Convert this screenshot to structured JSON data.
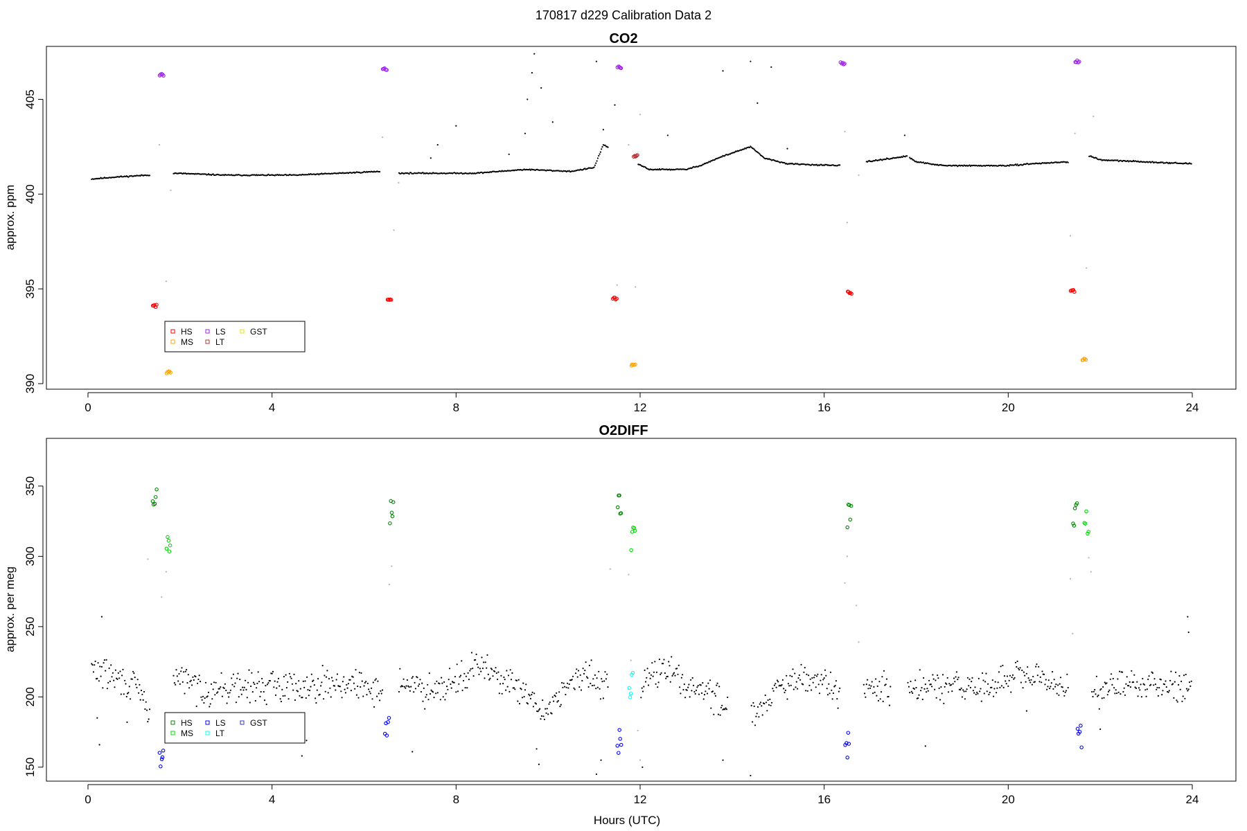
{
  "figure_title": "170817   d229   Calibration Data 2",
  "x_axis_label": "Hours (UTC)",
  "colors": {
    "ambient": "#000000",
    "transition": "#bbbbbb",
    "HS_co2": "#ff0000",
    "MS_co2": "#ffa500",
    "LS_co2": "#a020f0",
    "LT_co2": "#b03030",
    "GST_co2": "#ffff00",
    "HS_o2": "#008800",
    "MS_o2": "#00dd00",
    "LS_o2": "#0000ff",
    "LT_o2": "#00ffff",
    "GST_o2": "#3030cc"
  },
  "chart_data": [
    {
      "type": "scatter",
      "title": "CO2",
      "xlabel": "",
      "ylabel": "approx. ppm",
      "xlim": [
        0,
        24
      ],
      "ylim": [
        390,
        407.5
      ],
      "xticks": [
        0,
        4,
        8,
        12,
        16,
        20,
        24
      ],
      "yticks": [
        390,
        395,
        400,
        405
      ],
      "legend": {
        "position": "bottom-left",
        "entries": [
          "HS",
          "MS",
          "LS",
          "LT",
          "GST"
        ]
      },
      "ambient_baseline": [
        [
          0.1,
          400.8
        ],
        [
          0.6,
          400.9
        ],
        [
          1.3,
          401.0
        ],
        [
          1.9,
          401.1
        ],
        [
          3.0,
          401.0
        ],
        [
          4.5,
          401.0
        ],
        [
          6.4,
          401.2
        ],
        [
          6.8,
          401.1
        ],
        [
          8.4,
          401.1
        ],
        [
          9.5,
          401.3
        ],
        [
          10.5,
          401.2
        ],
        [
          11.0,
          401.4
        ],
        [
          11.2,
          402.6
        ],
        [
          11.6,
          402.0
        ],
        [
          12.2,
          401.3
        ],
        [
          13.0,
          401.3
        ],
        [
          13.3,
          401.5
        ],
        [
          13.8,
          402.0
        ],
        [
          14.4,
          402.5
        ],
        [
          14.7,
          401.9
        ],
        [
          15.2,
          401.6
        ],
        [
          16.3,
          401.5
        ],
        [
          17.8,
          402.0
        ],
        [
          18.0,
          401.7
        ],
        [
          18.6,
          401.5
        ],
        [
          20.0,
          401.5
        ],
        [
          20.5,
          401.6
        ],
        [
          21.3,
          401.7
        ],
        [
          21.8,
          402.0
        ],
        [
          22.0,
          401.8
        ],
        [
          23.0,
          401.7
        ],
        [
          24.0,
          401.6
        ]
      ],
      "ambient_gaps": [
        [
          1.35,
          1.85
        ],
        [
          6.35,
          6.75
        ],
        [
          11.3,
          11.95
        ],
        [
          16.35,
          16.9
        ],
        [
          17.8,
          17.85
        ],
        [
          21.3,
          21.75
        ]
      ],
      "calibrations": {
        "HS": [
          [
            1.45,
            394.1
          ],
          [
            6.55,
            394.4
          ],
          [
            11.45,
            394.5
          ],
          [
            16.55,
            394.8
          ],
          [
            21.4,
            394.9
          ]
        ],
        "MS": [
          [
            1.75,
            390.6
          ],
          [
            11.85,
            391.0
          ],
          [
            21.65,
            391.3
          ]
        ],
        "LS": [
          [
            1.6,
            406.3
          ],
          [
            6.45,
            406.6
          ],
          [
            11.55,
            406.7
          ],
          [
            16.4,
            406.9
          ],
          [
            21.5,
            407.0
          ]
        ],
        "LT": [
          [
            11.9,
            402.0
          ]
        ],
        "GST": []
      },
      "transitions": [
        [
          1.55,
          402.6
        ],
        [
          1.7,
          395.4
        ],
        [
          1.8,
          400.2
        ],
        [
          6.4,
          403.0
        ],
        [
          6.65,
          398.1
        ],
        [
          6.75,
          400.6
        ],
        [
          11.5,
          395.2
        ],
        [
          11.75,
          402.6
        ],
        [
          11.9,
          395.1
        ],
        [
          12.0,
          404.2
        ],
        [
          16.45,
          403.3
        ],
        [
          16.5,
          398.5
        ],
        [
          16.75,
          401.0
        ],
        [
          21.35,
          397.8
        ],
        [
          21.45,
          403.2
        ],
        [
          21.7,
          396.1
        ],
        [
          21.85,
          404.1
        ]
      ],
      "excursions": [
        [
          7.45,
          401.9
        ],
        [
          7.6,
          402.6
        ],
        [
          8.0,
          403.6
        ],
        [
          9.15,
          402.1
        ],
        [
          9.5,
          403.2
        ],
        [
          9.55,
          405.0
        ],
        [
          9.65,
          406.4
        ],
        [
          9.7,
          407.4
        ],
        [
          9.85,
          405.6
        ],
        [
          10.1,
          403.8
        ],
        [
          11.05,
          407.0
        ],
        [
          11.2,
          403.4
        ],
        [
          11.45,
          404.7
        ],
        [
          12.6,
          403.1
        ],
        [
          13.8,
          406.5
        ],
        [
          14.4,
          407.0
        ],
        [
          14.55,
          404.8
        ],
        [
          14.85,
          406.7
        ],
        [
          15.2,
          402.4
        ],
        [
          17.75,
          403.1
        ]
      ]
    },
    {
      "type": "scatter",
      "title": "O2DIFF",
      "xlabel": "Hours (UTC)",
      "ylabel": "approx. per meg",
      "xlim": [
        0,
        24
      ],
      "ylim": [
        144,
        380
      ],
      "xticks": [
        0,
        4,
        8,
        12,
        16,
        20,
        24
      ],
      "yticks": [
        150,
        200,
        250,
        300,
        350
      ],
      "legend": {
        "position": "bottom-left",
        "entries": [
          "HS",
          "MS",
          "LS",
          "LT",
          "GST"
        ]
      },
      "ambient_baseline": [
        [
          0.1,
          220
        ],
        [
          0.5,
          215
        ],
        [
          0.8,
          210
        ],
        [
          1.1,
          205
        ],
        [
          1.3,
          190
        ],
        [
          1.95,
          215
        ],
        [
          2.5,
          205
        ],
        [
          3.5,
          207
        ],
        [
          4.5,
          208
        ],
        [
          5.5,
          210
        ],
        [
          6.2,
          205
        ],
        [
          6.9,
          210
        ],
        [
          7.3,
          205
        ],
        [
          8.0,
          212
        ],
        [
          8.5,
          222
        ],
        [
          9.0,
          213
        ],
        [
          9.6,
          198
        ],
        [
          9.9,
          188
        ],
        [
          10.3,
          205
        ],
        [
          10.8,
          215
        ],
        [
          11.2,
          210
        ],
        [
          11.6,
          205
        ],
        [
          12.2,
          215
        ],
        [
          12.6,
          220
        ],
        [
          12.9,
          210
        ],
        [
          13.4,
          205
        ],
        [
          13.8,
          195
        ],
        [
          14.5,
          190
        ],
        [
          15.0,
          205
        ],
        [
          15.5,
          212
        ],
        [
          16.0,
          210
        ],
        [
          16.3,
          205
        ],
        [
          17.8,
          205
        ],
        [
          18.5,
          207
        ],
        [
          19.5,
          207
        ],
        [
          20.2,
          215
        ],
        [
          20.7,
          212
        ],
        [
          21.1,
          208
        ],
        [
          21.9,
          205
        ],
        [
          22.5,
          208
        ],
        [
          23.3,
          210
        ],
        [
          24.0,
          208
        ]
      ],
      "ambient_gaps": [
        [
          1.35,
          1.85
        ],
        [
          6.4,
          6.75
        ],
        [
          11.3,
          12.0
        ],
        [
          13.9,
          14.4
        ],
        [
          16.35,
          16.85
        ],
        [
          17.45,
          17.8
        ],
        [
          21.3,
          21.8
        ]
      ],
      "calibrations": {
        "HS": [
          [
            1.45,
            345
          ],
          [
            6.6,
            330
          ],
          [
            11.55,
            335
          ],
          [
            16.55,
            330
          ],
          [
            21.45,
            328
          ]
        ],
        "MS": [
          [
            1.75,
            312
          ],
          [
            11.85,
            313
          ],
          [
            21.7,
            325
          ]
        ],
        "LS": [
          [
            1.6,
            160
          ],
          [
            6.5,
            182
          ],
          [
            11.55,
            170
          ],
          [
            16.5,
            166
          ],
          [
            21.55,
            173
          ]
        ],
        "LT": [
          [
            11.8,
            208
          ]
        ],
        "GST": []
      },
      "transitions": [
        [
          1.3,
          298
        ],
        [
          1.6,
          271
        ],
        [
          1.7,
          289
        ],
        [
          6.55,
          280
        ],
        [
          6.6,
          293
        ],
        [
          11.35,
          291
        ],
        [
          11.75,
          287
        ],
        [
          11.8,
          226
        ],
        [
          11.95,
          176
        ],
        [
          12.0,
          155
        ],
        [
          16.45,
          281
        ],
        [
          16.5,
          300
        ],
        [
          16.7,
          265
        ],
        [
          16.75,
          239
        ],
        [
          21.35,
          284
        ],
        [
          21.4,
          245
        ],
        [
          21.75,
          299
        ],
        [
          21.8,
          289
        ]
      ],
      "excursions": [
        [
          0.3,
          257
        ],
        [
          0.25,
          166
        ],
        [
          0.2,
          185
        ],
        [
          0.85,
          182
        ],
        [
          4.75,
          169
        ],
        [
          4.65,
          158
        ],
        [
          7.05,
          161
        ],
        [
          9.75,
          163
        ],
        [
          9.8,
          152
        ],
        [
          11.05,
          145
        ],
        [
          11.15,
          155
        ],
        [
          12.05,
          150
        ],
        [
          13.8,
          155
        ],
        [
          14.4,
          144
        ],
        [
          18.2,
          165
        ],
        [
          20.4,
          190
        ],
        [
          22.0,
          177
        ],
        [
          23.9,
          257
        ],
        [
          23.92,
          246
        ]
      ]
    }
  ]
}
